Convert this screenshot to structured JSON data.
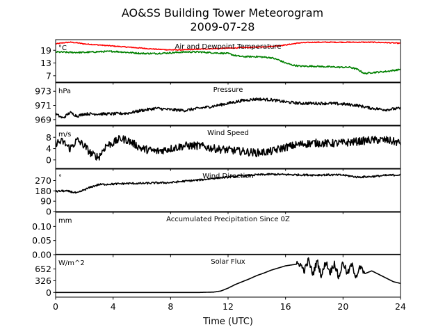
{
  "figure": {
    "title": "AO&SS Building Tower Meteorogram",
    "date": "2009-07-28",
    "xlabel": "Time (UTC)"
  },
  "chart_data": {
    "type": "line",
    "x_range": [
      0,
      24
    ],
    "x_ticks": [
      "0",
      "4",
      "8",
      "12",
      "16",
      "20",
      "24"
    ],
    "panels": [
      {
        "name": "Air and Dewpoint Temperature",
        "unit": "°C",
        "ylim": [
          4,
          24
        ],
        "yticks": [
          "7",
          "13",
          "19"
        ],
        "series": [
          {
            "name": "",
            "color": "#ff0000",
            "noise": 0.2,
            "x": [
              0,
              0.5,
              1,
              1.5,
              2,
              3,
              4,
              5,
              6,
              7,
              8,
              9,
              10,
              11,
              12,
              13,
              14,
              15,
              16,
              17,
              18,
              19,
              20,
              21,
              22,
              23,
              24
            ],
            "y": [
              22,
              22.5,
              22.8,
              22.5,
              22,
              21.5,
              21,
              20.5,
              20,
              19.5,
              19.2,
              19.2,
              19.5,
              19.8,
              20,
              20.2,
              20.5,
              20.8,
              21.5,
              22.5,
              22.8,
              22.8,
              22.8,
              22.8,
              22.8,
              22.6,
              22.3
            ]
          },
          {
            "name": "",
            "color": "#008000",
            "noise": 0.35,
            "x": [
              0,
              1,
              2,
              3,
              4,
              5,
              6,
              7,
              8,
              9,
              10,
              11,
              12,
              12.5,
              13,
              14,
              15,
              15.5,
              16,
              16.5,
              17,
              18,
              19,
              20,
              20.5,
              21,
              21.5,
              22,
              23,
              24
            ],
            "y": [
              18.2,
              18,
              18,
              18.3,
              18.5,
              18,
              17.5,
              17.5,
              17.8,
              18.2,
              18.2,
              17.8,
              17.5,
              16.5,
              16,
              16,
              15.5,
              14.5,
              13,
              12,
              11.5,
              11.5,
              11.2,
              11,
              11,
              10,
              8,
              8.5,
              9,
              10
            ]
          }
        ]
      },
      {
        "name": "Pressure",
        "unit": "hPa",
        "ylim": [
          968.2,
          974.2
        ],
        "yticks": [
          "969",
          "971",
          "973"
        ],
        "series": [
          {
            "name": "",
            "color": "#000000",
            "noise": 0.2,
            "x": [
              0,
              0.5,
              1,
              1.5,
              2,
              3,
              4,
              5,
              6,
              7,
              8,
              9,
              10,
              11,
              12,
              13,
              14,
              15,
              16,
              17,
              18,
              19,
              20,
              21,
              22,
              23,
              24
            ],
            "y": [
              969.8,
              969.2,
              970,
              969.5,
              969.8,
              969.8,
              969.8,
              969.9,
              970.3,
              970.6,
              970.4,
              970.3,
              970.6,
              970.9,
              971.3,
              971.7,
              971.9,
              971.8,
              971.5,
              971.3,
              971.3,
              971.3,
              971.2,
              971,
              970.6,
              970.4,
              970.6
            ]
          }
        ]
      },
      {
        "name": "Wind Speed",
        "unit": "m/s",
        "ylim": [
          -3,
          12
        ],
        "yticks": [
          "0",
          "4",
          "8"
        ],
        "series": [
          {
            "name": "",
            "color": "#000000",
            "noise": 1.4,
            "x": [
              0,
              0.5,
              1,
              1.5,
              2,
              2.5,
              3,
              3.5,
              4,
              4.5,
              5,
              6,
              7,
              8,
              9,
              10,
              11,
              12,
              13,
              14,
              15,
              16,
              17,
              18,
              19,
              20,
              21,
              22,
              23,
              24
            ],
            "y": [
              6,
              6.5,
              4,
              7,
              5,
              2,
              1,
              5,
              6,
              7.5,
              7,
              4,
              3,
              4,
              5,
              5,
              4,
              3.5,
              3,
              2.5,
              3,
              4.5,
              5.5,
              6,
              5.8,
              6,
              6.5,
              7,
              7,
              6
            ]
          }
        ]
      },
      {
        "name": "Wind Direction",
        "unit": "°",
        "ylim": [
          0,
          370
        ],
        "yticks": [
          "0",
          "90",
          "180",
          "270"
        ],
        "series": [
          {
            "name": "",
            "color": "#000000",
            "noise": 8,
            "x": [
              0,
              0.5,
              1,
              1.5,
              2,
              2.5,
              3,
              4,
              5,
              6,
              7,
              8,
              9,
              10,
              11,
              12,
              13,
              14,
              15,
              16,
              17,
              18,
              19,
              20,
              21,
              22,
              23,
              24
            ],
            "y": [
              175,
              180,
              175,
              160,
              190,
              215,
              235,
              240,
              245,
              245,
              250,
              252,
              265,
              275,
              290,
              300,
              310,
              320,
              325,
              322,
              320,
              318,
              320,
              318,
              300,
              305,
              315,
              320
            ]
          }
        ]
      },
      {
        "name": "Accumulated Precipitation Since 0Z",
        "unit": "mm",
        "ylim": [
          0,
          0.15
        ],
        "yticks": [
          "0.00",
          "0.05",
          "0.10"
        ],
        "series": [
          {
            "name": "",
            "color": "#000000",
            "noise": 0,
            "x": [
              0,
              24
            ],
            "y": [
              0,
              0
            ]
          }
        ]
      },
      {
        "name": "Solar Flux",
        "unit": "W/m^2",
        "ylim": [
          -130,
          1050
        ],
        "yticks": [
          "0",
          "326",
          "652"
        ],
        "series": [
          {
            "name": "",
            "color": "#000000",
            "noise": 0,
            "x": [
              0,
              10,
              11,
              11.5,
              12,
              12.5,
              13,
              13.5,
              14,
              14.5,
              15,
              15.5,
              16,
              16.5,
              17,
              17.3,
              17.6,
              17.9,
              18.2,
              18.5,
              18.8,
              19.1,
              19.4,
              19.7,
              20,
              20.3,
              20.6,
              20.9,
              21.2,
              21.5,
              22,
              22.5,
              23,
              23.5,
              24
            ],
            "y": [
              0,
              0,
              10,
              40,
              120,
              220,
              300,
              380,
              470,
              540,
              620,
              680,
              740,
              770,
              800,
              600,
              900,
              500,
              880,
              450,
              860,
              550,
              820,
              400,
              850,
              500,
              780,
              450,
              700,
              520,
              600,
              500,
              400,
              300,
              250
            ]
          }
        ]
      }
    ]
  }
}
